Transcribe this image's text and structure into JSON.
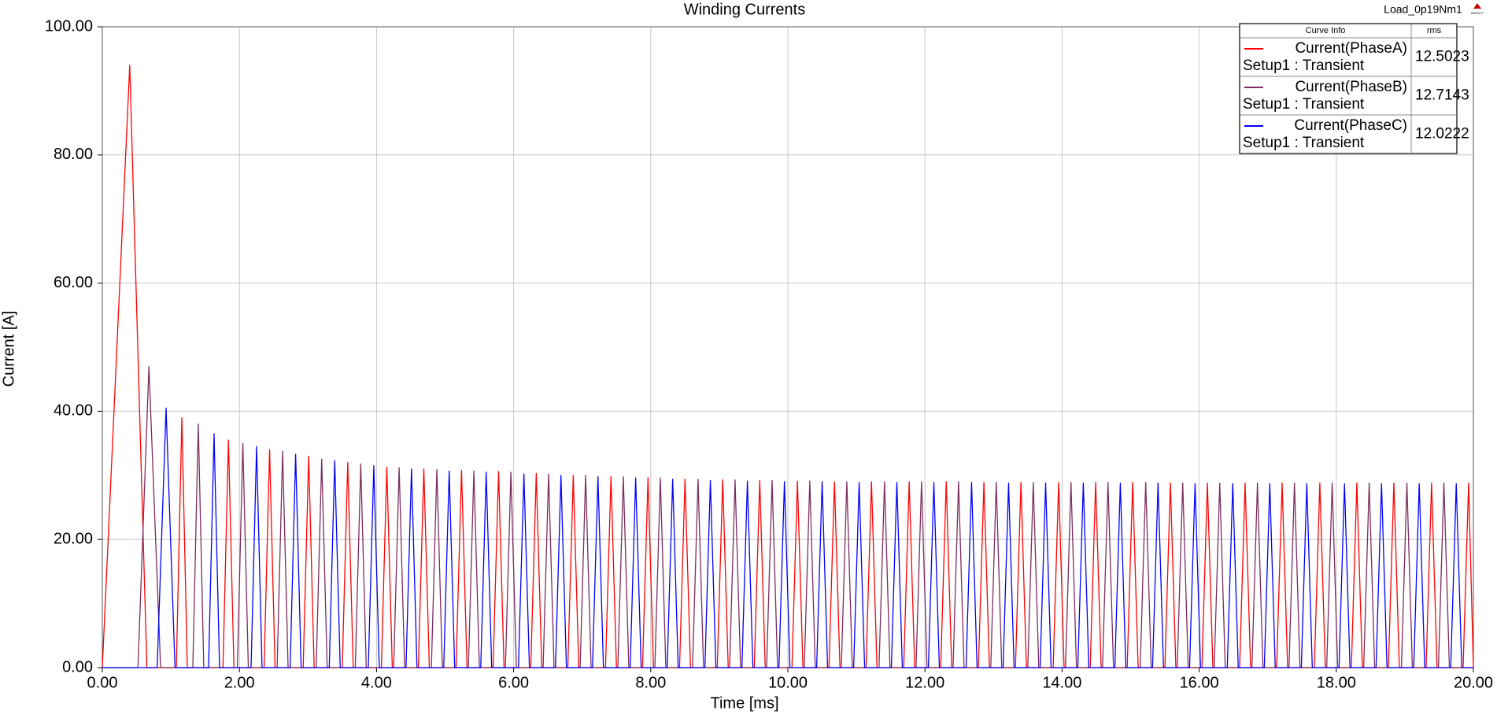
{
  "chart_data": {
    "type": "line",
    "title": "Winding Currents",
    "corner_label": "Load_0p19Nm1",
    "logo": "ANSOFT",
    "xlabel": "Time [ms]",
    "ylabel": "Current [A]",
    "xlim": [
      0,
      20
    ],
    "ylim": [
      0,
      100
    ],
    "xticks": [
      {
        "value": 0,
        "label": "0.00"
      },
      {
        "value": 2,
        "label": "2.00"
      },
      {
        "value": 4,
        "label": "4.00"
      },
      {
        "value": 6,
        "label": "6.00"
      },
      {
        "value": 8,
        "label": "8.00"
      },
      {
        "value": 10,
        "label": "10.00"
      },
      {
        "value": 12,
        "label": "12.00"
      },
      {
        "value": 14,
        "label": "14.00"
      },
      {
        "value": 16,
        "label": "16.00"
      },
      {
        "value": 18,
        "label": "18.00"
      },
      {
        "value": 20,
        "label": "20.00"
      }
    ],
    "yticks": [
      {
        "value": 0,
        "label": "0.00"
      },
      {
        "value": 20,
        "label": "20.00"
      },
      {
        "value": 40,
        "label": "40.00"
      },
      {
        "value": 60,
        "label": "60.00"
      },
      {
        "value": 80,
        "label": "80.00"
      },
      {
        "value": 100,
        "label": "100.00"
      }
    ],
    "grid": true,
    "legend_header": [
      "Curve Info",
      "rms"
    ],
    "legend_position": "upper right",
    "series": [
      {
        "name": "Current(PhaseA)",
        "setup": "Setup1 : Transient",
        "rms": 12.5023,
        "color": "#ff0000",
        "x": [
          0.0,
          0.4,
          0.65,
          1.08,
          1.16,
          1.24,
          1.76,
          1.84,
          1.92,
          2.36,
          2.44,
          2.52,
          2.93,
          3.01,
          3.09,
          3.5,
          3.58,
          3.66,
          4.07,
          4.15,
          4.23,
          4.61,
          4.69,
          4.77,
          5.16,
          5.24,
          5.32,
          5.7,
          5.78,
          5.86,
          6.25,
          6.33,
          6.41,
          6.79,
          6.87,
          6.95,
          7.34,
          7.42,
          7.5,
          7.88,
          7.96,
          8.04,
          8.42,
          8.5,
          8.58,
          8.97,
          9.05,
          9.13,
          9.51,
          9.59,
          9.67,
          10.06,
          10.14,
          10.22,
          10.6,
          10.68,
          10.76,
          11.14,
          11.22,
          11.3,
          11.69,
          11.77,
          11.85,
          12.23,
          12.31,
          12.39,
          12.78,
          12.86,
          12.94,
          13.32,
          13.4,
          13.48,
          13.87,
          13.95,
          14.03,
          14.41,
          14.49,
          14.57,
          14.95,
          15.03,
          15.11,
          15.5,
          15.58,
          15.66,
          16.04,
          16.12,
          16.2,
          16.59,
          16.67,
          16.75,
          17.13,
          17.21,
          17.29,
          17.68,
          17.76,
          17.84,
          18.22,
          18.3,
          18.38,
          18.76,
          18.84,
          18.92,
          19.31,
          19.39,
          19.47,
          19.85,
          19.93,
          20.0
        ],
        "values": [
          0,
          94,
          0,
          0,
          39,
          0,
          0,
          35.5,
          0,
          0,
          34,
          0,
          0,
          33,
          0,
          0,
          32,
          0,
          0,
          31.3,
          0,
          0,
          31,
          0,
          0,
          30.8,
          0,
          0,
          30.6,
          0,
          0,
          30.3,
          0,
          0,
          30,
          0,
          0,
          29.8,
          0,
          0,
          29.6,
          0,
          0,
          29.4,
          0,
          0,
          29.3,
          0,
          0,
          29.2,
          0,
          0,
          29.1,
          0,
          0,
          29,
          0,
          0,
          29,
          0,
          0,
          29,
          0,
          0,
          29,
          0,
          0,
          28.9,
          0,
          0,
          28.9,
          0,
          0,
          28.9,
          0,
          0,
          28.9,
          0,
          0,
          28.9,
          0,
          0,
          28.8,
          0,
          0,
          28.8,
          0,
          0,
          28.8,
          0,
          0,
          28.8,
          0,
          0,
          28.8,
          0,
          0,
          28.8,
          0,
          0,
          28.8,
          0,
          0,
          28.8,
          0,
          0,
          28.8,
          0
        ]
      },
      {
        "name": "Current(PhaseB)",
        "setup": "Setup1 : Transient",
        "rms": 12.7143,
        "color": "#7b2d5e",
        "x": [
          0.0,
          0.52,
          0.68,
          0.85,
          1.32,
          1.4,
          1.48,
          1.97,
          2.05,
          2.13,
          2.55,
          2.63,
          2.71,
          3.12,
          3.2,
          3.28,
          3.69,
          3.77,
          3.85,
          4.25,
          4.33,
          4.41,
          4.8,
          4.88,
          4.96,
          5.34,
          5.42,
          5.5,
          5.88,
          5.96,
          6.04,
          6.43,
          6.51,
          6.59,
          6.97,
          7.05,
          7.13,
          7.52,
          7.6,
          7.68,
          8.06,
          8.14,
          8.22,
          8.61,
          8.69,
          8.77,
          9.15,
          9.23,
          9.31,
          9.69,
          9.77,
          9.85,
          10.24,
          10.32,
          10.4,
          10.78,
          10.86,
          10.94,
          11.33,
          11.41,
          11.49,
          11.87,
          11.95,
          12.03,
          12.41,
          12.49,
          12.57,
          12.96,
          13.04,
          13.12,
          13.5,
          13.58,
          13.66,
          14.05,
          14.13,
          14.21,
          14.59,
          14.67,
          14.75,
          15.14,
          15.22,
          15.3,
          15.68,
          15.76,
          15.84,
          16.22,
          16.3,
          16.38,
          16.77,
          16.85,
          16.93,
          17.31,
          17.39,
          17.47,
          17.86,
          17.94,
          18.02,
          18.4,
          18.48,
          18.56,
          18.95,
          19.03,
          19.11,
          19.49,
          19.57,
          19.65,
          20.0
        ],
        "values": [
          0,
          0,
          47,
          0,
          0,
          38,
          0,
          0,
          35,
          0,
          0,
          33.8,
          0,
          0,
          32.5,
          0,
          0,
          31.8,
          0,
          0,
          31.2,
          0,
          0,
          30.9,
          0,
          0,
          30.7,
          0,
          0,
          30.5,
          0,
          0,
          30.2,
          0,
          0,
          30,
          0,
          0,
          29.8,
          0,
          0,
          29.6,
          0,
          0,
          29.4,
          0,
          0,
          29.3,
          0,
          0,
          29.2,
          0,
          0,
          29.1,
          0,
          0,
          29,
          0,
          0,
          29,
          0,
          0,
          29,
          0,
          0,
          29,
          0,
          0,
          28.9,
          0,
          0,
          28.9,
          0,
          0,
          28.9,
          0,
          0,
          28.9,
          0,
          0,
          28.9,
          0,
          0,
          28.8,
          0,
          0,
          28.8,
          0,
          0,
          28.8,
          0,
          0,
          28.8,
          0,
          0,
          28.8,
          0,
          0,
          28.8,
          0,
          0,
          28.8,
          0,
          0,
          28.8,
          0,
          0
        ]
      },
      {
        "name": "Current(PhaseC)",
        "setup": "Setup1 : Transient",
        "rms": 12.0222,
        "color": "#0000ff",
        "x": [
          0.0,
          0.8,
          0.93,
          1.06,
          1.55,
          1.63,
          1.71,
          2.17,
          2.25,
          2.33,
          2.74,
          2.82,
          2.9,
          3.31,
          3.39,
          3.47,
          3.88,
          3.96,
          4.04,
          4.43,
          4.51,
          4.59,
          4.98,
          5.06,
          5.14,
          5.52,
          5.6,
          5.68,
          6.07,
          6.15,
          6.23,
          6.61,
          6.69,
          6.77,
          7.15,
          7.23,
          7.31,
          7.7,
          7.78,
          7.86,
          8.24,
          8.32,
          8.4,
          8.79,
          8.87,
          8.95,
          9.33,
          9.41,
          9.49,
          9.87,
          9.95,
          10.03,
          10.42,
          10.5,
          10.58,
          10.96,
          11.04,
          11.12,
          11.51,
          11.59,
          11.67,
          12.05,
          12.13,
          12.21,
          12.6,
          12.68,
          12.76,
          13.14,
          13.22,
          13.3,
          13.68,
          13.76,
          13.84,
          14.23,
          14.31,
          14.39,
          14.77,
          14.85,
          14.93,
          15.32,
          15.4,
          15.48,
          15.86,
          15.94,
          16.02,
          16.41,
          16.49,
          16.57,
          16.95,
          17.03,
          17.11,
          17.49,
          17.57,
          17.65,
          18.04,
          18.12,
          18.2,
          18.58,
          18.66,
          18.74,
          19.13,
          19.21,
          19.29,
          19.67,
          19.75,
          19.83,
          20.0
        ],
        "values": [
          0,
          0,
          40.5,
          0,
          0,
          36.5,
          0,
          0,
          34.5,
          0,
          0,
          33.3,
          0,
          0,
          32.3,
          0,
          0,
          31.5,
          0,
          0,
          31,
          0,
          0,
          30.7,
          0,
          0,
          30.5,
          0,
          0,
          30.2,
          0,
          0,
          30,
          0,
          0,
          29.8,
          0,
          0,
          29.6,
          0,
          0,
          29.4,
          0,
          0,
          29.2,
          0,
          0,
          29.1,
          0,
          0,
          29,
          0,
          0,
          29,
          0,
          0,
          28.9,
          0,
          0,
          28.9,
          0,
          0,
          28.9,
          0,
          0,
          28.9,
          0,
          0,
          28.8,
          0,
          0,
          28.8,
          0,
          0,
          28.8,
          0,
          0,
          28.8,
          0,
          0,
          28.8,
          0,
          0,
          28.7,
          0,
          0,
          28.7,
          0,
          0,
          28.7,
          0,
          0,
          28.7,
          0,
          0,
          28.7,
          0,
          0,
          28.7,
          0,
          0,
          28.7,
          0,
          0,
          28.7,
          0,
          0
        ]
      }
    ]
  }
}
